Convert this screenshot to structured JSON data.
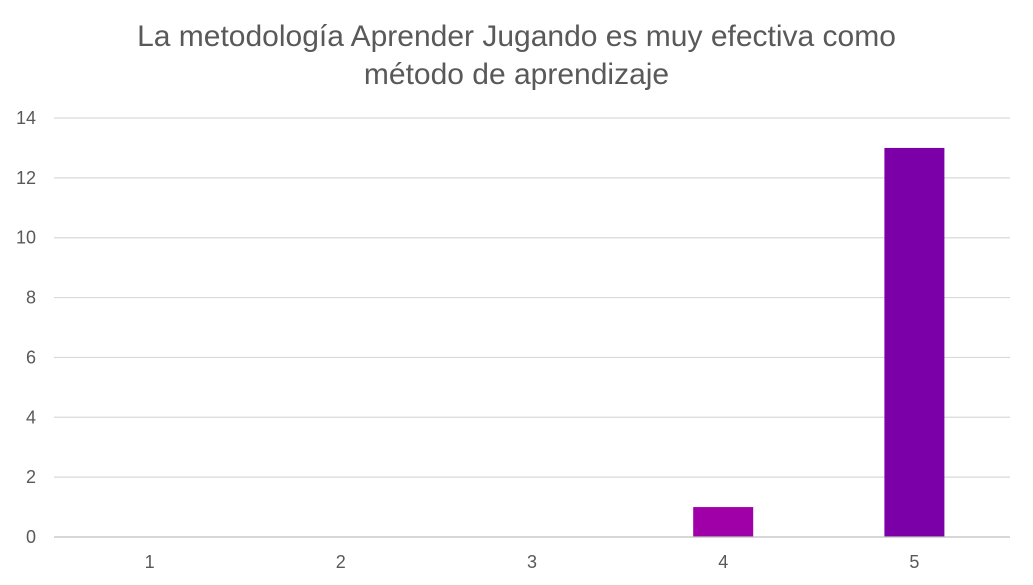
{
  "chart_data": {
    "type": "bar",
    "title_lines": [
      "La metodología Aprender Jugando es muy efectiva como",
      "método de aprendizaje"
    ],
    "categories": [
      "1",
      "2",
      "3",
      "4",
      "5"
    ],
    "values": [
      0,
      0,
      0,
      1,
      13
    ],
    "bar_colors": [
      "#a000a8",
      "#a000a8",
      "#a000a8",
      "#a000a8",
      "#7b00a8"
    ],
    "ylim": [
      0,
      14
    ],
    "yticks": [
      0,
      2,
      4,
      6,
      8,
      10,
      12,
      14
    ],
    "xlabel": "",
    "ylabel": "",
    "grid": true,
    "legend": "none"
  }
}
